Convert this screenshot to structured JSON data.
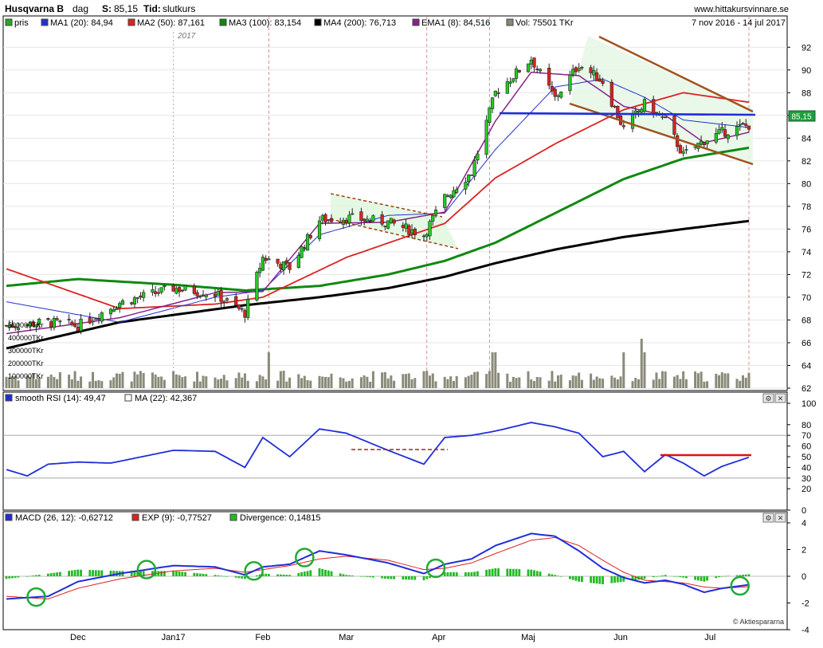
{
  "header": {
    "ticker": "Husqvarna B",
    "interval": "dag",
    "last_label": "S:",
    "last_value": "85,15",
    "time_label": "Tid:",
    "time_value": "slutkurs",
    "site": "www.hittakursvinnare.se",
    "date_range": "7 nov 2016 - 14 jul 2017",
    "year_marker": "2017",
    "last_price_tag": "85,15",
    "logo_text": "Aktiespararna"
  },
  "legend": {
    "price": {
      "label": "pris",
      "color": "#22aa22"
    },
    "ma1": {
      "label": "MA1 (20): 84,94",
      "color": "#2233cc"
    },
    "ma2": {
      "label": "MA2 (50): 87,161",
      "color": "#dd2222"
    },
    "ma3": {
      "label": "MA3 (100): 83,154",
      "color": "#118811"
    },
    "ma4": {
      "label": "MA4 (200): 76,713",
      "color": "#000000"
    },
    "ema1": {
      "label": "EMA1 (8): 84,516",
      "color": "#882288"
    },
    "vol": {
      "label": "Vol: 75501 TKr",
      "color": "#888877"
    }
  },
  "rsi_legend": {
    "rsi": {
      "label": "smooth RSI (14): 49,47",
      "color": "#1f2ed8"
    },
    "ma": {
      "label": "MA (22): 42,367",
      "color": "#ffffff"
    }
  },
  "macd_legend": {
    "macd": {
      "label": "MACD (26, 12): -0,62712",
      "color": "#1f2ed8"
    },
    "exp": {
      "label": "EXP (9): -0,77527",
      "color": "#dd2222"
    },
    "div": {
      "label": "Divergence: 0,14815",
      "color": "#22bb22"
    }
  },
  "chart_data": [
    {
      "type": "line",
      "title": "Husqvarna B - dag",
      "y_axis_side": "right",
      "ylim": [
        62,
        93
      ],
      "y_ticks": [
        62,
        64,
        66,
        68,
        70,
        72,
        74,
        76,
        78,
        80,
        82,
        84,
        86,
        88,
        90,
        92
      ],
      "x_ticks": [
        "Dec",
        "Jan17",
        "Feb",
        "Mar",
        "Apr",
        "Maj",
        "Jun",
        "Jul"
      ],
      "volume_ticks": [
        "100000TKr",
        "200000TKr",
        "300000TKr",
        "400000TKr",
        "500000TKr"
      ],
      "series": [
        {
          "name": "pris",
          "x": [
            "2016-11-07",
            "2016-11-21",
            "2016-12-01",
            "2016-12-15",
            "2017-01-02",
            "2017-01-16",
            "2017-01-26",
            "2017-02-01",
            "2017-02-10",
            "2017-02-20",
            "2017-03-01",
            "2017-03-15",
            "2017-03-27",
            "2017-04-03",
            "2017-04-12",
            "2017-04-20",
            "2017-05-02",
            "2017-05-10",
            "2017-05-18",
            "2017-05-26",
            "2017-06-02",
            "2017-06-09",
            "2017-06-16",
            "2017-06-22",
            "2017-06-29",
            "2017-07-05",
            "2017-07-14"
          ],
          "values": [
            67.5,
            67.8,
            67.5,
            69.5,
            70.8,
            70.3,
            68.6,
            73.5,
            72.6,
            76.8,
            77.0,
            76.6,
            75.5,
            78.8,
            81.0,
            88.0,
            91.0,
            87.5,
            90.5,
            89.0,
            84.8,
            87.0,
            85.5,
            82.5,
            83.8,
            84.5,
            85.15
          ]
        },
        {
          "name": "MA1 (20)",
          "x": [
            "2016-11-07",
            "2016-12-15",
            "2017-01-16",
            "2017-02-01",
            "2017-02-20",
            "2017-03-15",
            "2017-04-03",
            "2017-04-20",
            "2017-05-10",
            "2017-05-26",
            "2017-06-09",
            "2017-06-22",
            "2017-07-14"
          ],
          "values": [
            69.6,
            67.8,
            70.0,
            70.6,
            75.5,
            77.2,
            77.4,
            83.0,
            88.5,
            89.2,
            87.6,
            85.6,
            84.94
          ]
        },
        {
          "name": "MA2 (50)",
          "x": [
            "2016-11-07",
            "2016-12-15",
            "2017-01-16",
            "2017-02-01",
            "2017-03-01",
            "2017-04-03",
            "2017-04-20",
            "2017-05-10",
            "2017-06-02",
            "2017-06-22",
            "2017-07-14"
          ],
          "values": [
            72.5,
            69.0,
            69.4,
            70.0,
            73.5,
            76.5,
            80.5,
            83.5,
            86.5,
            88.0,
            87.161
          ]
        },
        {
          "name": "MA3 (100)",
          "x": [
            "2016-11-07",
            "2016-12-01",
            "2017-01-02",
            "2017-01-26",
            "2017-02-20",
            "2017-03-15",
            "2017-04-03",
            "2017-04-20",
            "2017-05-10",
            "2017-06-02",
            "2017-06-22",
            "2017-07-14"
          ],
          "values": [
            71.0,
            71.6,
            71.1,
            70.6,
            71.0,
            72.0,
            73.2,
            74.8,
            77.4,
            80.4,
            82.2,
            83.154
          ]
        },
        {
          "name": "MA4 (200)",
          "x": [
            "2016-11-07",
            "2016-12-15",
            "2017-01-26",
            "2017-02-20",
            "2017-03-15",
            "2017-04-03",
            "2017-04-20",
            "2017-05-10",
            "2017-06-02",
            "2017-06-22",
            "2017-07-14"
          ],
          "values": [
            65.5,
            67.8,
            69.3,
            70.0,
            70.8,
            71.8,
            73.0,
            74.2,
            75.3,
            76.0,
            76.713
          ]
        },
        {
          "name": "EMA1 (8)",
          "x": [
            "2016-11-07",
            "2016-12-15",
            "2017-01-16",
            "2017-02-01",
            "2017-02-20",
            "2017-03-15",
            "2017-04-03",
            "2017-04-20",
            "2017-05-02",
            "2017-05-18",
            "2017-06-02",
            "2017-06-16",
            "2017-06-29",
            "2017-07-14"
          ],
          "values": [
            66.8,
            68.2,
            70.4,
            70.5,
            76.5,
            76.6,
            77.5,
            85.5,
            89.8,
            89.5,
            86.8,
            86.0,
            83.6,
            84.516
          ]
        }
      ]
    },
    {
      "type": "line",
      "title": "smooth RSI (14)",
      "ylim": [
        0,
        100
      ],
      "y_ticks": [
        0,
        20,
        30,
        40,
        50,
        60,
        70,
        80,
        100
      ],
      "reference_lines": [
        30,
        70
      ],
      "series": [
        {
          "name": "smooth RSI (14)",
          "x": [
            "2016-11-07",
            "2016-11-14",
            "2016-11-21",
            "2016-12-01",
            "2016-12-12",
            "2017-01-02",
            "2017-01-16",
            "2017-01-26",
            "2017-02-01",
            "2017-02-10",
            "2017-02-20",
            "2017-03-01",
            "2017-03-15",
            "2017-03-27",
            "2017-04-03",
            "2017-04-12",
            "2017-04-20",
            "2017-05-02",
            "2017-05-10",
            "2017-05-18",
            "2017-05-26",
            "2017-06-02",
            "2017-06-09",
            "2017-06-16",
            "2017-06-22",
            "2017-06-29",
            "2017-07-05",
            "2017-07-14"
          ],
          "values": [
            38,
            32,
            43,
            45,
            44,
            56,
            55,
            40,
            68,
            50,
            76,
            72,
            56,
            43,
            68,
            70,
            74,
            82,
            78,
            72,
            50,
            55,
            36,
            52,
            44,
            32,
            41,
            49.47
          ]
        }
      ]
    },
    {
      "type": "line",
      "title": "MACD (26, 12)",
      "ylim": [
        -4,
        4
      ],
      "y_ticks": [
        -4,
        -2,
        0,
        2,
        4
      ],
      "series": [
        {
          "name": "MACD (26, 12)",
          "x": [
            "2016-11-07",
            "2016-11-21",
            "2016-12-01",
            "2016-12-15",
            "2017-01-02",
            "2017-01-16",
            "2017-01-26",
            "2017-02-01",
            "2017-02-10",
            "2017-02-20",
            "2017-03-01",
            "2017-03-15",
            "2017-03-27",
            "2017-04-03",
            "2017-04-12",
            "2017-04-20",
            "2017-05-02",
            "2017-05-10",
            "2017-05-18",
            "2017-05-26",
            "2017-06-02",
            "2017-06-09",
            "2017-06-16",
            "2017-06-22",
            "2017-06-29",
            "2017-07-05",
            "2017-07-14"
          ],
          "values": [
            -1.7,
            -1.5,
            -0.4,
            0.2,
            0.8,
            0.7,
            0.1,
            0.7,
            0.9,
            1.9,
            1.6,
            1.0,
            0.2,
            0.9,
            1.3,
            2.3,
            3.2,
            3.0,
            1.9,
            0.6,
            -0.1,
            -0.5,
            -0.3,
            -0.6,
            -1.2,
            -0.9,
            -0.63
          ]
        },
        {
          "name": "EXP (9)",
          "x": [
            "2016-11-07",
            "2016-11-21",
            "2016-12-01",
            "2016-12-15",
            "2017-01-02",
            "2017-01-16",
            "2017-01-26",
            "2017-02-01",
            "2017-02-10",
            "2017-02-20",
            "2017-03-01",
            "2017-03-15",
            "2017-03-27",
            "2017-04-03",
            "2017-04-12",
            "2017-04-20",
            "2017-05-02",
            "2017-05-10",
            "2017-05-18",
            "2017-05-26",
            "2017-06-02",
            "2017-06-09",
            "2017-06-16",
            "2017-06-22",
            "2017-06-29",
            "2017-07-05",
            "2017-07-14"
          ],
          "values": [
            -1.5,
            -1.7,
            -0.9,
            -0.2,
            0.4,
            0.6,
            0.3,
            0.5,
            0.8,
            1.3,
            1.5,
            1.2,
            0.5,
            0.6,
            1.0,
            1.7,
            2.7,
            2.9,
            2.3,
            1.2,
            0.3,
            -0.3,
            -0.4,
            -0.5,
            -0.8,
            -0.9,
            -0.78
          ]
        }
      ]
    }
  ]
}
